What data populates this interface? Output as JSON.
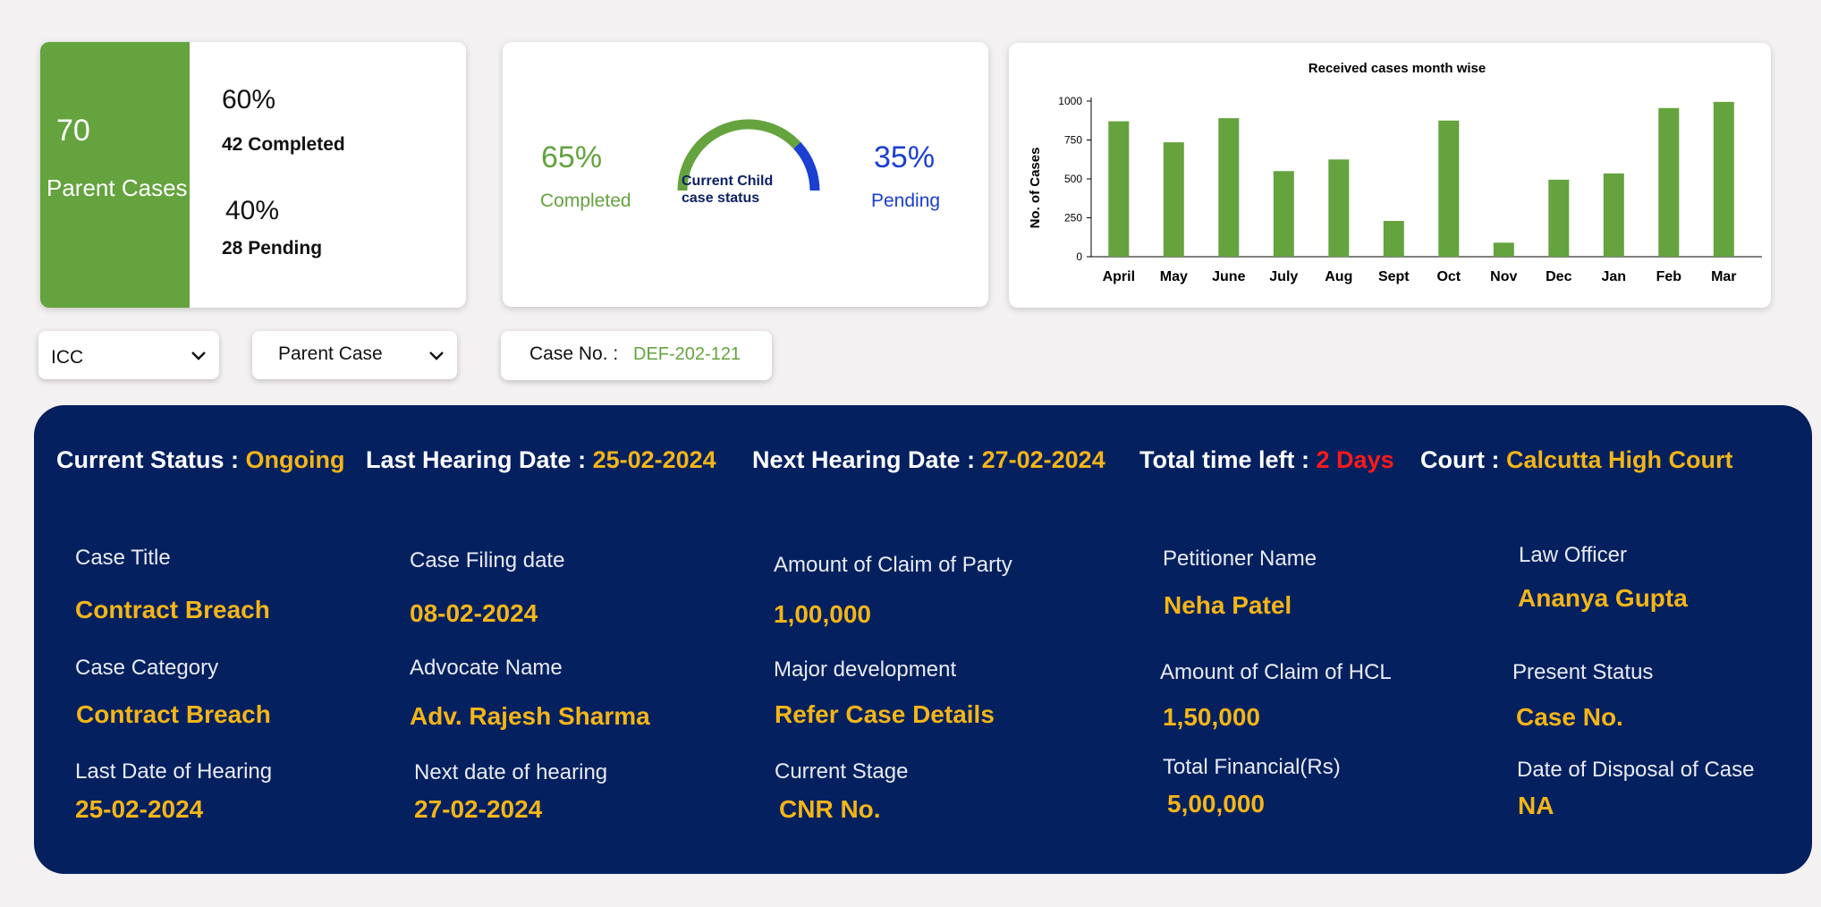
{
  "parent_summary": {
    "count": "70",
    "label": "Parent Cases",
    "completed_pct": "60%",
    "completed_text": "42 Completed",
    "pending_pct": "40%",
    "pending_text": "28 Pending",
    "accent_color": "#64a33e"
  },
  "child_status": {
    "completed_pct": "65%",
    "completed_label": "Completed",
    "pending_pct": "35%",
    "pending_label": "Pending",
    "gauge_label_line1": "Current Child",
    "gauge_label_line2": "case status",
    "completed_fraction": 0.65,
    "pending_fraction": 0.35,
    "completed_color": "#64a33e",
    "pending_color": "#1a3fd1"
  },
  "chart_data": {
    "type": "bar",
    "title": "Received cases month wise",
    "xlabel": "",
    "ylabel": "No. of Cases",
    "categories": [
      "April",
      "May",
      "June",
      "July",
      "Aug",
      "Sept",
      "Oct",
      "Nov",
      "Dec",
      "Jan",
      "Feb",
      "Mar"
    ],
    "values": [
      870,
      735,
      890,
      550,
      625,
      230,
      875,
      90,
      495,
      535,
      955,
      995
    ],
    "yticks": [
      "0",
      "250",
      "500",
      "750",
      "1000"
    ],
    "ylim": [
      0,
      1000
    ],
    "grid": false,
    "bar_color": "#64a33e"
  },
  "filters": {
    "icc_value": "ICC",
    "icc_chevron_icon": "chevron-down-icon",
    "parent_value": "Parent Case",
    "parent_chevron_icon": "chevron-down-icon",
    "case_no_label": "Case No.  :",
    "case_no_value": "DEF-202-121"
  },
  "status_bar": {
    "current_status_label": "Current Status :",
    "current_status_value": "Ongoing",
    "last_hearing_label": "Last Hearing Date :",
    "last_hearing_value": "25-02-2024",
    "next_hearing_label": "Next Hearing Date :",
    "next_hearing_value": "27-02-2024",
    "time_left_label": "Total time left :",
    "time_left_value": "2 Days",
    "court_label": "Court :",
    "court_value": "Calcutta High Court"
  },
  "details": {
    "case_title": {
      "label": "Case Title",
      "value": "Contract Breach"
    },
    "case_filing_date": {
      "label": "Case Filing date",
      "value": "08-02-2024"
    },
    "amount_claim_party": {
      "label": "Amount of Claim of Party",
      "value": "1,00,000"
    },
    "petitioner_name": {
      "label": "Petitioner Name",
      "value": "Neha Patel"
    },
    "law_officer": {
      "label": "Law Officer",
      "value": "Ananya Gupta"
    },
    "case_category": {
      "label": "Case Category",
      "value": "Contract Breach"
    },
    "advocate_name": {
      "label": "Advocate Name",
      "value": "Adv. Rajesh Sharma"
    },
    "major_development": {
      "label": "Major development",
      "value": "Refer Case Details"
    },
    "amount_claim_hcl": {
      "label": "Amount of Claim of HCL",
      "value": "1,50,000"
    },
    "present_status": {
      "label": "Present Status",
      "value": "Case No."
    },
    "last_date_hearing": {
      "label": "Last Date of Hearing",
      "value": "25-02-2024"
    },
    "next_date_hearing": {
      "label": "Next date of hearing",
      "value": "27-02-2024"
    },
    "current_stage": {
      "label": "Current Stage",
      "value": "CNR No."
    },
    "total_financial": {
      "label": "Total Financial(Rs)",
      "value": "5,00,000"
    },
    "date_disposal": {
      "label": "Date of Disposal of Case",
      "value": "NA"
    }
  }
}
